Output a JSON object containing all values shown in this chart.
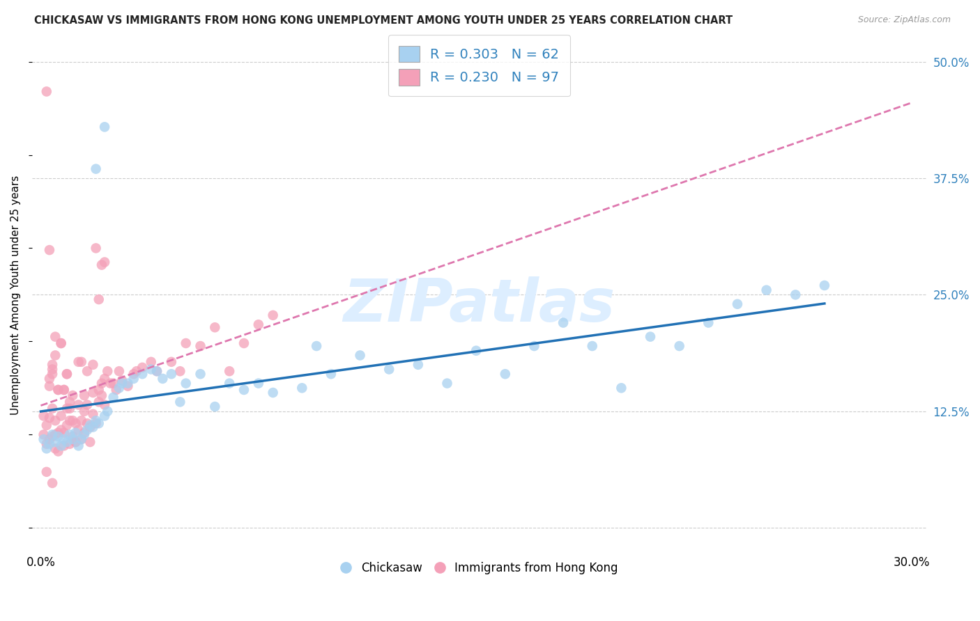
{
  "title": "CHICKASAW VS IMMIGRANTS FROM HONG KONG UNEMPLOYMENT AMONG YOUTH UNDER 25 YEARS CORRELATION CHART",
  "source": "Source: ZipAtlas.com",
  "ylabel": "Unemployment Among Youth under 25 years",
  "xlim": [
    -0.003,
    0.305
  ],
  "ylim": [
    -0.025,
    0.525
  ],
  "xticks": [
    0.0,
    0.05,
    0.1,
    0.15,
    0.2,
    0.25,
    0.3
  ],
  "xticklabels": [
    "0.0%",
    "",
    "",
    "",
    "",
    "",
    "30.0%"
  ],
  "yticks": [
    0.0,
    0.125,
    0.25,
    0.375,
    0.5
  ],
  "yticklabels": [
    "",
    "12.5%",
    "25.0%",
    "37.5%",
    "50.0%"
  ],
  "legend_labels": [
    "Chickasaw",
    "Immigrants from Hong Kong"
  ],
  "R_chickasaw": "0.303",
  "N_chickasaw": "62",
  "R_hk": "0.230",
  "N_hk": "97",
  "blue_scatter_color": "#a8d1f0",
  "pink_scatter_color": "#f4a0b8",
  "blue_line_color": "#2171b5",
  "pink_line_color": "#de77ae",
  "watermark_color": "#ddeeff",
  "watermark_text": "ZIPatlas",
  "bg_color": "#ffffff",
  "grid_color": "#cccccc",
  "title_color": "#222222",
  "right_tick_color": "#3182bd",
  "chickasaw_x": [
    0.001,
    0.002,
    0.003,
    0.004,
    0.005,
    0.006,
    0.007,
    0.008,
    0.009,
    0.01,
    0.011,
    0.012,
    0.013,
    0.014,
    0.015,
    0.016,
    0.017,
    0.018,
    0.019,
    0.02,
    0.022,
    0.023,
    0.025,
    0.027,
    0.028,
    0.03,
    0.032,
    0.035,
    0.038,
    0.04,
    0.042,
    0.045,
    0.048,
    0.05,
    0.055,
    0.06,
    0.065,
    0.07,
    0.075,
    0.08,
    0.09,
    0.095,
    0.1,
    0.11,
    0.12,
    0.13,
    0.14,
    0.15,
    0.16,
    0.17,
    0.18,
    0.19,
    0.2,
    0.21,
    0.22,
    0.23,
    0.24,
    0.25,
    0.26,
    0.27,
    0.022,
    0.019
  ],
  "chickasaw_y": [
    0.095,
    0.085,
    0.09,
    0.1,
    0.092,
    0.098,
    0.088,
    0.095,
    0.092,
    0.1,
    0.095,
    0.102,
    0.088,
    0.095,
    0.1,
    0.105,
    0.11,
    0.108,
    0.115,
    0.112,
    0.12,
    0.125,
    0.14,
    0.15,
    0.155,
    0.155,
    0.16,
    0.165,
    0.17,
    0.168,
    0.16,
    0.165,
    0.135,
    0.155,
    0.165,
    0.13,
    0.155,
    0.148,
    0.155,
    0.145,
    0.15,
    0.195,
    0.165,
    0.185,
    0.17,
    0.175,
    0.155,
    0.19,
    0.165,
    0.195,
    0.22,
    0.195,
    0.15,
    0.205,
    0.195,
    0.22,
    0.24,
    0.255,
    0.25,
    0.26,
    0.43,
    0.385
  ],
  "hk_x": [
    0.001,
    0.001,
    0.002,
    0.002,
    0.003,
    0.003,
    0.004,
    0.004,
    0.005,
    0.005,
    0.005,
    0.006,
    0.006,
    0.007,
    0.007,
    0.008,
    0.008,
    0.009,
    0.009,
    0.01,
    0.01,
    0.01,
    0.011,
    0.011,
    0.012,
    0.012,
    0.013,
    0.013,
    0.014,
    0.014,
    0.015,
    0.015,
    0.016,
    0.016,
    0.017,
    0.018,
    0.018,
    0.019,
    0.02,
    0.02,
    0.021,
    0.021,
    0.022,
    0.022,
    0.023,
    0.024,
    0.025,
    0.026,
    0.027,
    0.028,
    0.03,
    0.032,
    0.033,
    0.035,
    0.038,
    0.04,
    0.045,
    0.048,
    0.05,
    0.055,
    0.06,
    0.065,
    0.07,
    0.075,
    0.08,
    0.003,
    0.004,
    0.005,
    0.006,
    0.007,
    0.008,
    0.009,
    0.01,
    0.011,
    0.012,
    0.013,
    0.014,
    0.015,
    0.016,
    0.017,
    0.018,
    0.019,
    0.02,
    0.021,
    0.022,
    0.002,
    0.003,
    0.004,
    0.005,
    0.006,
    0.007,
    0.008,
    0.009,
    0.004,
    0.004,
    0.003,
    0.002
  ],
  "hk_y": [
    0.1,
    0.12,
    0.09,
    0.11,
    0.095,
    0.118,
    0.098,
    0.128,
    0.085,
    0.1,
    0.115,
    0.082,
    0.102,
    0.105,
    0.12,
    0.088,
    0.102,
    0.11,
    0.128,
    0.09,
    0.115,
    0.135,
    0.098,
    0.115,
    0.092,
    0.112,
    0.105,
    0.132,
    0.095,
    0.115,
    0.102,
    0.125,
    0.112,
    0.132,
    0.108,
    0.122,
    0.145,
    0.112,
    0.135,
    0.148,
    0.142,
    0.155,
    0.132,
    0.16,
    0.168,
    0.155,
    0.155,
    0.148,
    0.168,
    0.158,
    0.152,
    0.165,
    0.168,
    0.172,
    0.178,
    0.168,
    0.178,
    0.168,
    0.198,
    0.195,
    0.215,
    0.168,
    0.198,
    0.218,
    0.228,
    0.16,
    0.175,
    0.185,
    0.148,
    0.198,
    0.148,
    0.165,
    0.128,
    0.142,
    0.092,
    0.178,
    0.178,
    0.142,
    0.168,
    0.092,
    0.175,
    0.3,
    0.245,
    0.282,
    0.285,
    0.468,
    0.298,
    0.17,
    0.205,
    0.148,
    0.198,
    0.148,
    0.165,
    0.048,
    0.165,
    0.152,
    0.06
  ]
}
